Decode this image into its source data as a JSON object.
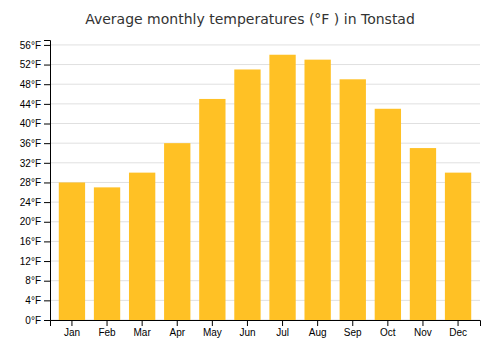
{
  "chart_data": {
    "type": "bar",
    "title": "Average monthly temperatures (°F ) in Tonstad",
    "categories": [
      "Jan",
      "Feb",
      "Mar",
      "Apr",
      "May",
      "Jun",
      "Jul",
      "Aug",
      "Sep",
      "Oct",
      "Nov",
      "Dec"
    ],
    "values": [
      28,
      27,
      30,
      36,
      45,
      51,
      54,
      53,
      49,
      43,
      35,
      30
    ],
    "color": "#FFC125",
    "ylim": [
      0,
      57
    ],
    "yticks": [
      {
        "value": 0,
        "label": "0°F"
      },
      {
        "value": 4,
        "label": "4°F"
      },
      {
        "value": 8,
        "label": "8°F"
      },
      {
        "value": 12,
        "label": "12°F"
      },
      {
        "value": 16,
        "label": "16°F"
      },
      {
        "value": 20,
        "label": "20°F"
      },
      {
        "value": 24,
        "label": "24°F"
      },
      {
        "value": 28,
        "label": "28°F"
      },
      {
        "value": 32,
        "label": "32°F"
      },
      {
        "value": 36,
        "label": "36°F"
      },
      {
        "value": 40,
        "label": "40°F"
      },
      {
        "value": 44,
        "label": "44°F"
      },
      {
        "value": 48,
        "label": "48°F"
      },
      {
        "value": 52,
        "label": "52°F"
      },
      {
        "value": 56,
        "label": "56°F"
      }
    ],
    "grid": true
  }
}
